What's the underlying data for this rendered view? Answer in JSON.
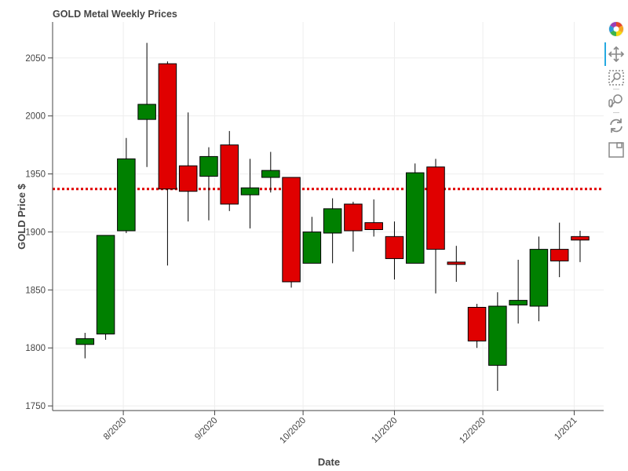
{
  "chart_data": {
    "type": "candlestick",
    "title": "GOLD Metal Weekly Prices",
    "xlabel": "Date",
    "ylabel": "GOLD Price $",
    "ylim": [
      1746,
      2081
    ],
    "xlim": [
      "2020-07-08",
      "2021-01-11"
    ],
    "yticks": [
      1750,
      1800,
      1850,
      1900,
      1950,
      2000,
      2050
    ],
    "xticks": [
      {
        "date": "2020-08-01",
        "label": "8/2020"
      },
      {
        "date": "2020-09-01",
        "label": "9/2020"
      },
      {
        "date": "2020-10-01",
        "label": "10/2020"
      },
      {
        "date": "2020-11-01",
        "label": "11/2020"
      },
      {
        "date": "2020-12-01",
        "label": "12/2020"
      },
      {
        "date": "2021-01-01",
        "label": "1/2021"
      }
    ],
    "average_line": 1937,
    "grid": true,
    "up_color": "#008000",
    "down_color": "#e00000",
    "average_color": "#e00000",
    "candles": [
      {
        "date": "2020-07-19",
        "open": 1803,
        "high": 1813,
        "low": 1791,
        "close": 1808
      },
      {
        "date": "2020-07-26",
        "open": 1812,
        "high": 1897,
        "low": 1807,
        "close": 1897
      },
      {
        "date": "2020-08-02",
        "open": 1901,
        "high": 1981,
        "low": 1899,
        "close": 1963
      },
      {
        "date": "2020-08-09",
        "open": 1997,
        "high": 2063,
        "low": 1956,
        "close": 2010
      },
      {
        "date": "2020-08-16",
        "open": 2045,
        "high": 2047,
        "low": 1871,
        "close": 1937
      },
      {
        "date": "2020-08-23",
        "open": 1957,
        "high": 2003,
        "low": 1909,
        "close": 1935
      },
      {
        "date": "2020-08-30",
        "open": 1948,
        "high": 1973,
        "low": 1910,
        "close": 1965
      },
      {
        "date": "2020-09-06",
        "open": 1975,
        "high": 1987,
        "low": 1918,
        "close": 1924
      },
      {
        "date": "2020-09-13",
        "open": 1932,
        "high": 1963,
        "low": 1903,
        "close": 1938
      },
      {
        "date": "2020-09-20",
        "open": 1947,
        "high": 1969,
        "low": 1934,
        "close": 1953
      },
      {
        "date": "2020-09-27",
        "open": 1947,
        "high": 1947,
        "low": 1852,
        "close": 1857
      },
      {
        "date": "2020-10-04",
        "open": 1873,
        "high": 1913,
        "low": 1873,
        "close": 1900
      },
      {
        "date": "2020-10-11",
        "open": 1899,
        "high": 1929,
        "low": 1873,
        "close": 1920
      },
      {
        "date": "2020-10-18",
        "open": 1924,
        "high": 1926,
        "low": 1883,
        "close": 1901
      },
      {
        "date": "2020-10-25",
        "open": 1908,
        "high": 1928,
        "low": 1896,
        "close": 1902
      },
      {
        "date": "2020-11-01",
        "open": 1896,
        "high": 1909,
        "low": 1859,
        "close": 1877
      },
      {
        "date": "2020-11-08",
        "open": 1873,
        "high": 1959,
        "low": 1873,
        "close": 1951
      },
      {
        "date": "2020-11-15",
        "open": 1956,
        "high": 1963,
        "low": 1847,
        "close": 1885
      },
      {
        "date": "2020-11-22",
        "open": 1874,
        "high": 1888,
        "low": 1857,
        "close": 1872
      },
      {
        "date": "2020-11-29",
        "open": 1835,
        "high": 1838,
        "low": 1800,
        "close": 1806
      },
      {
        "date": "2020-12-06",
        "open": 1785,
        "high": 1848,
        "low": 1763,
        "close": 1836
      },
      {
        "date": "2020-12-13",
        "open": 1837,
        "high": 1876,
        "low": 1821,
        "close": 1841
      },
      {
        "date": "2020-12-20",
        "open": 1836,
        "high": 1896,
        "low": 1823,
        "close": 1885
      },
      {
        "date": "2020-12-27",
        "open": 1885,
        "high": 1908,
        "low": 1861,
        "close": 1875
      },
      {
        "date": "2021-01-03",
        "open": 1896,
        "high": 1901,
        "low": 1874,
        "close": 1893
      }
    ]
  },
  "toolbar": {
    "tools": [
      {
        "name": "bokeh-logo-icon"
      },
      {
        "name": "pan-tool-icon"
      },
      {
        "name": "box-zoom-tool-icon"
      },
      {
        "name": "wheel-zoom-tool-icon"
      },
      {
        "name": "reset-tool-icon"
      },
      {
        "name": "save-tool-icon"
      }
    ]
  }
}
